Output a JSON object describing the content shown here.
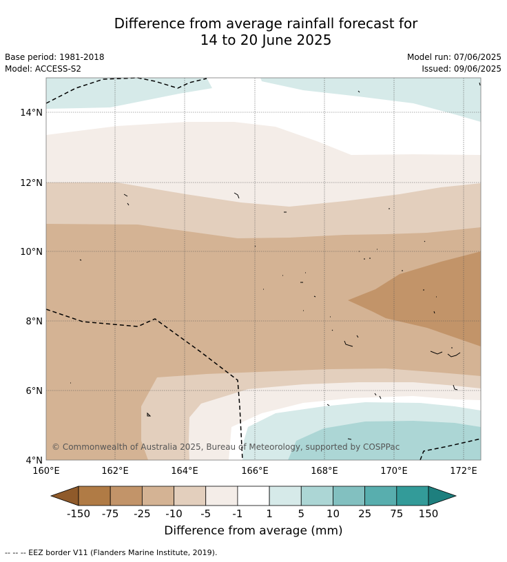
{
  "header": {
    "title_line1": "Difference from average rainfall forecast for",
    "title_line2": "14 to 20 June 2025",
    "base_period": "Base period: 1981-2018",
    "model": "Model: ACCESS-S2",
    "model_run": "Model run: 07/06/2025",
    "issued": "Issued: 09/06/2025"
  },
  "map": {
    "lat_labels": [
      "14°N",
      "12°N",
      "10°N",
      "8°N",
      "6°N",
      "4°N"
    ],
    "lon_labels": [
      "160°E",
      "162°E",
      "164°E",
      "166°E",
      "168°E",
      "170°E",
      "172°E"
    ],
    "copyright": "© Commonwealth of Australia 2025, Bureau of Meteorology, supported by COSPPac",
    "gridlines": true,
    "extent_lon": [
      160,
      172.5
    ],
    "extent_lat": [
      4,
      15
    ]
  },
  "colorbar": {
    "title": "Difference from average (mm)",
    "tick_labels": [
      "-150",
      "-75",
      "-25",
      "-10",
      "-5",
      "-1",
      "1",
      "5",
      "10",
      "25",
      "75",
      "150"
    ],
    "colors": [
      "#8f5a2a",
      "#b07b45",
      "#c29469",
      "#d4b394",
      "#e3cfbd",
      "#f4ede8",
      "#ffffff",
      "#d6eae9",
      "#acd6d5",
      "#82c0c0",
      "#58aeae",
      "#339b99",
      "#1e7f7e"
    ]
  },
  "footnote": "--  --  -- EEZ border V11 (Flanders Marine Institute, 2019)."
}
